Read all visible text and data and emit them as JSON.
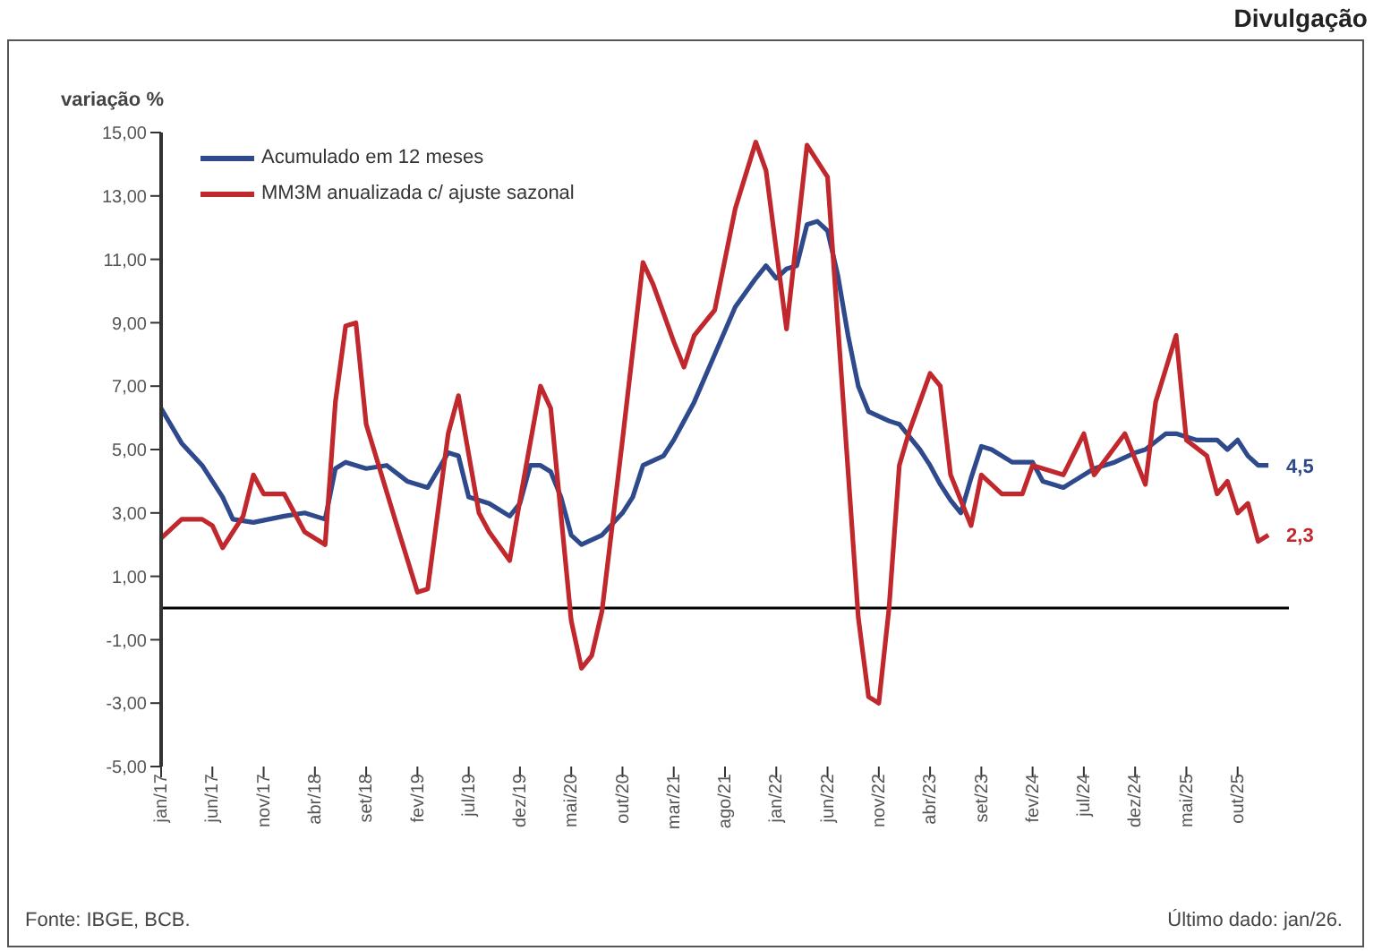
{
  "chart_data": {
    "type": "line",
    "ylabel": "variação %",
    "xlim": [
      "2017-01",
      "2026-03"
    ],
    "xticks": [
      {
        "value": "2017-01",
        "label": "jan/17"
      },
      {
        "value": "2017-06",
        "label": "jun/17"
      },
      {
        "value": "2017-11",
        "label": "nov/17"
      },
      {
        "value": "2018-04",
        "label": "abr/18"
      },
      {
        "value": "2018-09",
        "label": "set/18"
      },
      {
        "value": "2019-02",
        "label": "fev/19"
      },
      {
        "value": "2019-07",
        "label": "jul/19"
      },
      {
        "value": "2019-12",
        "label": "dez/19"
      },
      {
        "value": "2020-05",
        "label": "mai/20"
      },
      {
        "value": "2020-10",
        "label": "out/20"
      },
      {
        "value": "2021-03",
        "label": "mar/21"
      },
      {
        "value": "2021-08",
        "label": "ago/21"
      },
      {
        "value": "2022-01",
        "label": "jan/22"
      },
      {
        "value": "2022-06",
        "label": "jun/22"
      },
      {
        "value": "2022-11",
        "label": "nov/22"
      },
      {
        "value": "2023-04",
        "label": "abr/23"
      },
      {
        "value": "2023-09",
        "label": "set/23"
      },
      {
        "value": "2024-02",
        "label": "fev/24"
      },
      {
        "value": "2024-07",
        "label": "jul/24"
      },
      {
        "value": "2024-12",
        "label": "dez/24"
      },
      {
        "value": "2025-05",
        "label": "mai/25"
      },
      {
        "value": "2025-10",
        "label": "out/25"
      }
    ],
    "ylim": [
      -5,
      15
    ],
    "yticks": [
      {
        "value": -5,
        "label": "-5,00"
      },
      {
        "value": -3,
        "label": "-3,00"
      },
      {
        "value": -1,
        "label": "-1,00"
      },
      {
        "value": 1,
        "label": "1,00"
      },
      {
        "value": 3,
        "label": "3,00"
      },
      {
        "value": 5,
        "label": "5,00"
      },
      {
        "value": 7,
        "label": "7,00"
      },
      {
        "value": 9,
        "label": "9,00"
      },
      {
        "value": 11,
        "label": "11,00"
      },
      {
        "value": 13,
        "label": "13,00"
      },
      {
        "value": 15,
        "label": "15,00"
      }
    ],
    "ref_lines": [
      {
        "axis": "y",
        "value": 0,
        "color": "#000000"
      }
    ],
    "legend": "top left",
    "series": [
      {
        "name": "Acumulado em 12 meses",
        "color": "#2e4a8c",
        "x": [
          "2017-01",
          "2017-03",
          "2017-05",
          "2017-07",
          "2017-08",
          "2017-10",
          "2018-01",
          "2018-03",
          "2018-05",
          "2018-06",
          "2018-07",
          "2018-09",
          "2018-11",
          "2019-01",
          "2019-03",
          "2019-05",
          "2019-06",
          "2019-07",
          "2019-09",
          "2019-11",
          "2019-12",
          "2020-01",
          "2020-02",
          "2020-03",
          "2020-04",
          "2020-05",
          "2020-06",
          "2020-08",
          "2020-10",
          "2020-11",
          "2020-12",
          "2021-02",
          "2021-03",
          "2021-05",
          "2021-07",
          "2021-09",
          "2021-11",
          "2021-12",
          "2022-01",
          "2022-02",
          "2022-03",
          "2022-04",
          "2022-05",
          "2022-06",
          "2022-07",
          "2022-08",
          "2022-09",
          "2022-10",
          "2022-12",
          "2023-01",
          "2023-03",
          "2023-04",
          "2023-05",
          "2023-06",
          "2023-07",
          "2023-08",
          "2023-09",
          "2023-10",
          "2023-12",
          "2024-02",
          "2024-03",
          "2024-05",
          "2024-06",
          "2024-08",
          "2024-10",
          "2024-12",
          "2025-01",
          "2025-03",
          "2025-04",
          "2025-06",
          "2025-08",
          "2025-09",
          "2025-10",
          "2025-11",
          "2025-12",
          "2026-01"
        ],
        "values": [
          6.3,
          5.2,
          4.5,
          3.5,
          2.8,
          2.7,
          2.9,
          3.0,
          2.8,
          4.4,
          4.6,
          4.4,
          4.5,
          4.0,
          3.8,
          4.9,
          4.8,
          3.5,
          3.3,
          2.9,
          3.3,
          4.5,
          4.5,
          4.3,
          3.5,
          2.3,
          2.0,
          2.3,
          3.0,
          3.5,
          4.5,
          4.8,
          5.3,
          6.5,
          8.0,
          9.5,
          10.4,
          10.8,
          10.4,
          10.7,
          10.8,
          12.1,
          12.2,
          11.9,
          10.5,
          8.6,
          7.0,
          6.2,
          5.9,
          5.8,
          5.0,
          4.5,
          3.9,
          3.4,
          3.0,
          4.1,
          5.1,
          5.0,
          4.6,
          4.6,
          4.0,
          3.8,
          4.0,
          4.4,
          4.6,
          4.9,
          5.0,
          5.5,
          5.5,
          5.3,
          5.3,
          5.0,
          5.3,
          4.8,
          4.5,
          4.5
        ]
      },
      {
        "name": "MM3M anualizada c/ ajuste sazonal",
        "color": "#c0282d",
        "x": [
          "2017-01",
          "2017-03",
          "2017-05",
          "2017-06",
          "2017-07",
          "2017-09",
          "2017-10",
          "2017-11",
          "2018-01",
          "2018-03",
          "2018-05",
          "2018-06",
          "2018-07",
          "2018-08",
          "2018-09",
          "2018-12",
          "2019-02",
          "2019-03",
          "2019-05",
          "2019-06",
          "2019-08",
          "2019-09",
          "2019-11",
          "2019-12",
          "2020-02",
          "2020-03",
          "2020-05",
          "2020-06",
          "2020-07",
          "2020-08",
          "2020-10",
          "2020-12",
          "2021-01",
          "2021-03",
          "2021-04",
          "2021-05",
          "2021-07",
          "2021-09",
          "2021-11",
          "2021-12",
          "2022-02",
          "2022-04",
          "2022-06",
          "2022-09",
          "2022-10",
          "2022-11",
          "2022-12",
          "2023-01",
          "2023-02",
          "2023-04",
          "2023-05",
          "2023-06",
          "2023-08",
          "2023-09",
          "2023-11",
          "2024-01",
          "2024-02",
          "2024-05",
          "2024-07",
          "2024-08",
          "2024-11",
          "2025-01",
          "2025-02",
          "2025-04",
          "2025-05",
          "2025-07",
          "2025-08",
          "2025-09",
          "2025-10",
          "2025-11",
          "2025-12",
          "2026-01"
        ],
        "values": [
          2.2,
          2.8,
          2.8,
          2.6,
          1.9,
          2.9,
          4.2,
          3.6,
          3.6,
          2.4,
          2.0,
          6.5,
          8.9,
          9.0,
          5.8,
          2.6,
          0.5,
          0.6,
          5.5,
          6.7,
          3.0,
          2.4,
          1.5,
          3.4,
          7.0,
          6.3,
          -0.4,
          -1.9,
          -1.5,
          -0.1,
          5.3,
          10.9,
          10.2,
          8.4,
          7.6,
          8.6,
          9.4,
          12.6,
          14.7,
          13.8,
          8.8,
          14.6,
          13.6,
          -0.3,
          -2.8,
          -3.0,
          0.0,
          4.5,
          5.6,
          7.4,
          7.0,
          4.2,
          2.6,
          4.2,
          3.6,
          3.6,
          4.5,
          4.2,
          5.5,
          4.2,
          5.5,
          3.9,
          6.5,
          8.6,
          5.3,
          4.8,
          3.6,
          4.0,
          3.0,
          3.3,
          2.1,
          2.3
        ]
      }
    ],
    "annotations": [
      {
        "text": "4,5",
        "x": "2026-01",
        "y": 4.5
      },
      {
        "text": "2,3",
        "x": "2026-01",
        "y": 2.3
      },
      "Divulgação",
      "Fonte: IBGE, BCB.",
      "Último dado: jan/26."
    ]
  }
}
